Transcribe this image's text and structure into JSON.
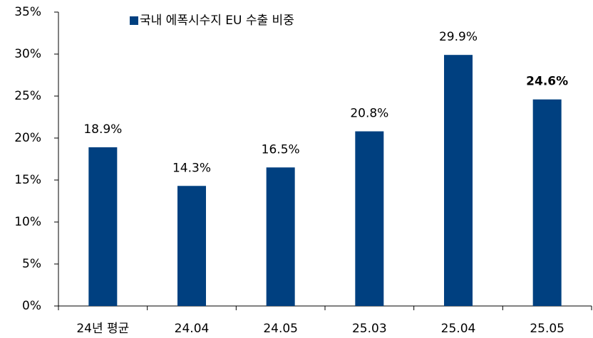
{
  "chart_data": {
    "type": "bar",
    "categories": [
      "24년 평균",
      "24.04",
      "24.05",
      "25.03",
      "25.04",
      "25.05"
    ],
    "series": [
      {
        "name": "국내 에폭시수지 EU 수출 비중",
        "color": "#004080",
        "values": [
          18.9,
          14.3,
          16.5,
          20.8,
          29.9,
          24.6
        ],
        "value_labels": [
          "18.9%",
          "14.3%",
          "16.5%",
          "20.8%",
          "29.9%",
          "24.6%"
        ]
      }
    ],
    "highlight_index": 5,
    "ylim": [
      0,
      35
    ],
    "yticks": [
      {
        "value": 0,
        "label": "0%"
      },
      {
        "value": 5,
        "label": "5%"
      },
      {
        "value": 10,
        "label": "10%"
      },
      {
        "value": 15,
        "label": "15%"
      },
      {
        "value": 20,
        "label": "20%"
      },
      {
        "value": 25,
        "label": "25%"
      },
      {
        "value": 30,
        "label": "30%"
      },
      {
        "value": 35,
        "label": "35%"
      }
    ],
    "grid": false,
    "legend": "top-left"
  }
}
